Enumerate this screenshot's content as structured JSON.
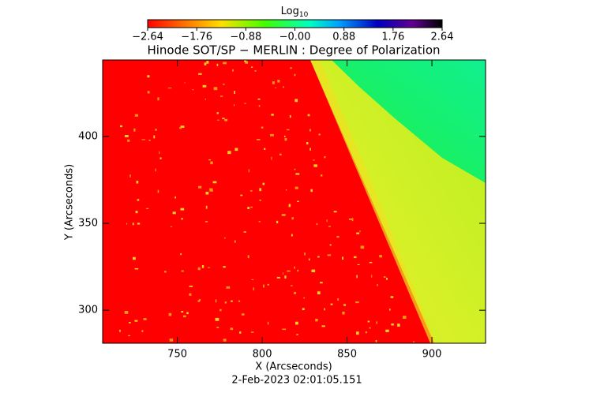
{
  "chart_data": {
    "type": "image",
    "title": "Hinode SOT/SP − MERLIN : Degree of Polarization",
    "xlabel": "X (Arcseconds)",
    "ylabel": "Y (Arcseconds)",
    "xlim": [
      706,
      931.6
    ],
    "ylim": [
      281,
      444
    ],
    "xticks": [
      750,
      800,
      850,
      900
    ],
    "yticks": [
      300,
      350,
      400
    ],
    "colorbar": {
      "label": "Log",
      "label_subscript": "10",
      "lim": [
        -2.64,
        2.64
      ],
      "ticks": [
        {
          "value": -2.64,
          "label": "−2.64"
        },
        {
          "value": -1.76,
          "label": "−1.76"
        },
        {
          "value": -0.88,
          "label": "−0.88"
        },
        {
          "value": 0,
          "label": "−0.00"
        },
        0.88,
        1.76,
        2.64
      ]
    },
    "annotation": "2-Feb-2023 02:01:05.151"
  }
}
